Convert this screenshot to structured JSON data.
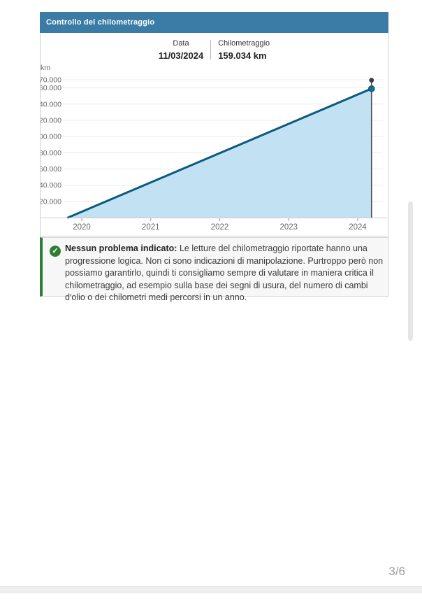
{
  "card": {
    "title": "Controllo del chilometraggio",
    "tooltip": {
      "date_label": "Data",
      "date_value": "11/03/2024",
      "km_label": "Chilometraggio",
      "km_value": "159.034 km"
    }
  },
  "chart_data": {
    "type": "area",
    "title": "Controllo del chilometraggio",
    "ylabel": "km",
    "x_ticks": [
      "2020",
      "2021",
      "2022",
      "2023",
      "2024"
    ],
    "y_ticks": [
      "170.000",
      "160.000",
      "140.000",
      "120.000",
      "100.000",
      "80.000",
      "60.000",
      "40.000",
      "20.000"
    ],
    "y_tick_values": [
      170000,
      160000,
      140000,
      120000,
      100000,
      80000,
      60000,
      40000,
      20000
    ],
    "ylim": [
      0,
      170000
    ],
    "grid": true,
    "legend": "none",
    "series": [
      {
        "name": "chilometraggio",
        "points": [
          {
            "x": 2019.8,
            "km": 0
          },
          {
            "x": 2024.2,
            "km": 159034
          }
        ]
      }
    ],
    "selected_point": {
      "date": "11/03/2024",
      "km": 159034,
      "km_formatted": "159.034 km"
    },
    "line_color": "#0b5a7d",
    "fill_color": "#c2e2f3",
    "grid_color": "#ececec",
    "axis_color": "#cccccc",
    "tick_label_color": "#666666"
  },
  "status": {
    "icon": "check-circle",
    "check_glyph": "✓",
    "title": "Nessun problema indicato:",
    "text": "Le letture del chilometraggio riportate hanno una progressione logica. Non ci sono indicazioni di manipolazione. Purtroppo però non possiamo garantirlo, quindi ti consigliamo sempre di valutare in maniera critica il chilometraggio, ad esempio sulla base dei segni di usura, del numero di cambi d'olio o dei chilometri medi percorsi in un anno.",
    "accent_color": "#2e7d32"
  },
  "pagination": "3/6"
}
